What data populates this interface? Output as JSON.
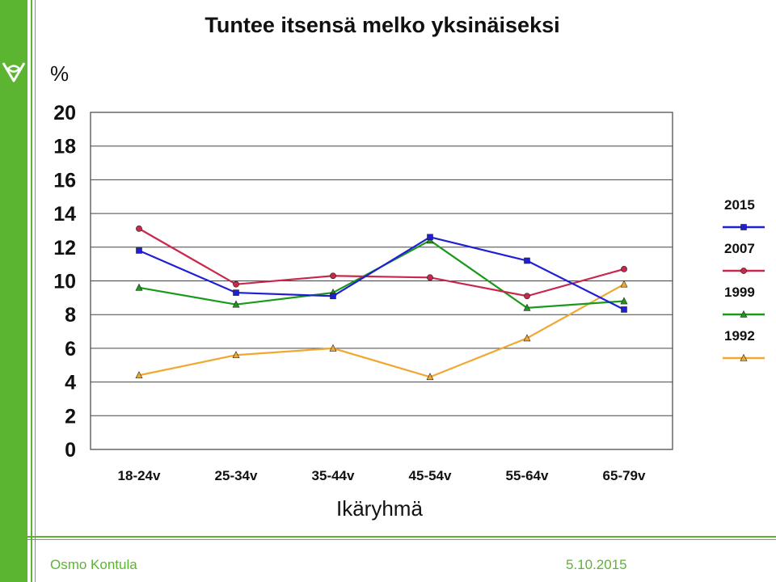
{
  "theme": {
    "accent": "#5cb531"
  },
  "logo": {
    "icon": "leaf-logo-icon"
  },
  "footer": {
    "author": "Osmo Kontula",
    "date": "5.10.2015"
  },
  "chart_data": {
    "type": "line",
    "title": "Tuntee itsensä melko yksinäiseksi",
    "ylabel": "%",
    "xlabel": "Ikäryhmä",
    "categories": [
      "18-24v",
      "25-34v",
      "35-44v",
      "45-54v",
      "55-64v",
      "65-79v"
    ],
    "ylim": [
      0,
      20
    ],
    "yticks": [
      0,
      2,
      4,
      6,
      8,
      10,
      12,
      14,
      16,
      18,
      20
    ],
    "grid": true,
    "legend_position": "right",
    "series": [
      {
        "name": "2015",
        "color": "#1f1fd6",
        "marker": "square",
        "values": [
          11.8,
          9.3,
          9.1,
          12.6,
          11.2,
          8.3
        ]
      },
      {
        "name": "2007",
        "color": "#c8284a",
        "marker": "circle",
        "values": [
          13.1,
          9.8,
          10.3,
          10.2,
          9.1,
          10.7
        ]
      },
      {
        "name": "1999",
        "color": "#1a9a1a",
        "marker": "triangle",
        "values": [
          9.6,
          8.6,
          9.3,
          12.4,
          8.4,
          8.8
        ]
      },
      {
        "name": "1992",
        "color": "#f0a830",
        "marker": "triangle",
        "values": [
          4.4,
          5.6,
          6.0,
          4.3,
          6.6,
          9.8
        ]
      }
    ]
  }
}
